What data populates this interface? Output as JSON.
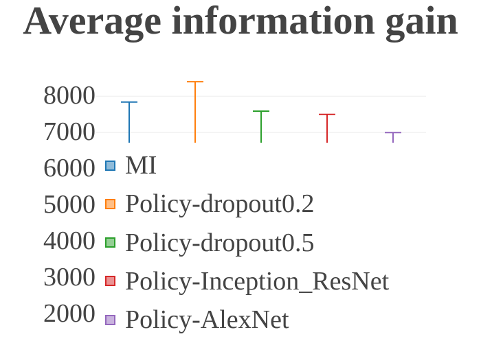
{
  "chart_data": {
    "type": "bar",
    "title": "Average information gain",
    "xlabel": "",
    "ylabel": "",
    "ylim": [
      6720,
      8780
    ],
    "y_tick_labels": [
      "8000",
      "7000",
      "6000",
      "5000",
      "4000",
      "3000",
      "2000"
    ],
    "y_ticks": [
      8000,
      7000,
      6000,
      5000,
      4000,
      3000,
      2000
    ],
    "grid": true,
    "legend_placement": "overlapping-left",
    "series": [
      {
        "name": "MI",
        "color": "#1f77b4",
        "error_bar_top": 7840
      },
      {
        "name": "Policy-dropout0.2",
        "color": "#ff7f0e",
        "error_bar_top": 8400
      },
      {
        "name": "Policy-dropout0.5",
        "color": "#2ca02c",
        "error_bar_top": 7590
      },
      {
        "name": "Policy-Inception_ResNet",
        "color": "#d62728",
        "error_bar_top": 7500
      },
      {
        "name": "Policy-AlexNet",
        "color": "#9467bd",
        "error_bar_top": 7000
      }
    ]
  }
}
